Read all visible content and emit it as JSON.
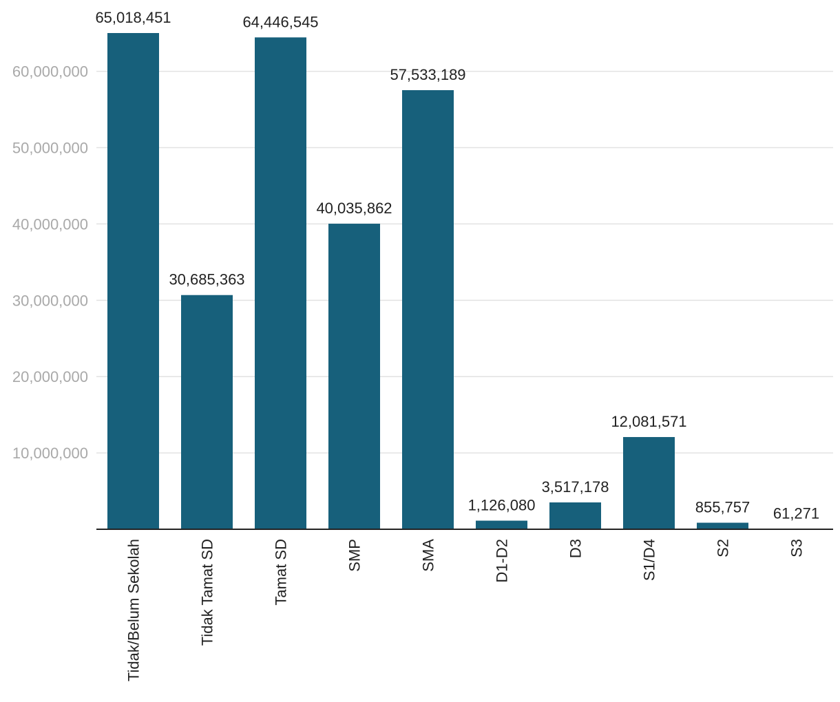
{
  "chart_data": {
    "type": "bar",
    "title": "",
    "xlabel": "",
    "ylabel": "",
    "categories": [
      "Tidak/Belum Sekolah",
      "Tidak Tamat SD",
      "Tamat SD",
      "SMP",
      "SMA",
      "D1-D2",
      "D3",
      "S1/D4",
      "S2",
      "S3"
    ],
    "values": [
      65018451,
      30685363,
      64446545,
      40035862,
      57533189,
      1126080,
      3517178,
      12081571,
      855757,
      61271
    ],
    "data_labels": [
      "65,018,451",
      "30,685,363",
      "64,446,545",
      "40,035,862",
      "57,533,189",
      "1,126,080",
      "3,517,178",
      "12,081,571",
      "855,757",
      "61,271"
    ],
    "yticks": [
      10000000,
      20000000,
      30000000,
      40000000,
      50000000,
      60000000
    ],
    "ytick_labels": [
      "10,000,000",
      "20,000,000",
      "30,000,000",
      "40,000,000",
      "50,000,000",
      "60,000,000"
    ],
    "ylim": [
      0,
      65018451
    ],
    "grid": true,
    "legend": "none",
    "colors": {
      "bar": "#17607b",
      "grid": "#e2e2e2",
      "axis": "#222222",
      "ytick": "#a9a9a9",
      "label": "#222222"
    }
  }
}
